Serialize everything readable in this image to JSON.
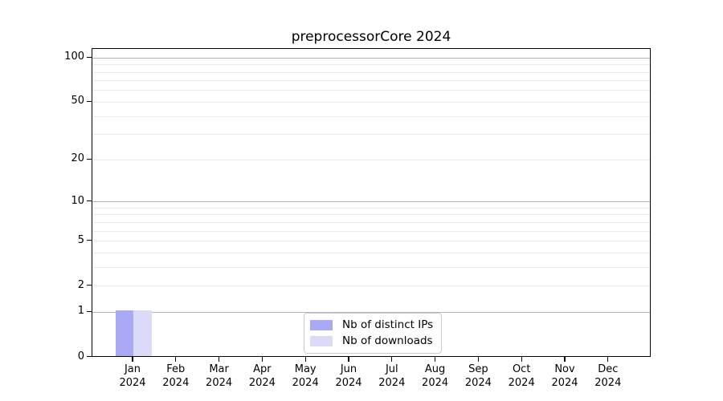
{
  "chart_data": {
    "type": "bar",
    "title": "preprocessorCore 2024",
    "categories": [
      "Jan\n2024",
      "Feb\n2024",
      "Mar\n2024",
      "Apr\n2024",
      "May\n2024",
      "Jun\n2024",
      "Jul\n2024",
      "Aug\n2024",
      "Sep\n2024",
      "Oct\n2024",
      "Nov\n2024",
      "Dec\n2024"
    ],
    "series": [
      {
        "name": "Nb of distinct IPs",
        "color": "#a9a9f4",
        "values": [
          1,
          0,
          0,
          0,
          0,
          0,
          0,
          0,
          0,
          0,
          0,
          0
        ]
      },
      {
        "name": "Nb of downloads",
        "color": "#dbdbf9",
        "values": [
          1,
          0,
          0,
          0,
          0,
          0,
          0,
          0,
          0,
          0,
          0,
          0
        ]
      }
    ],
    "xlabel": "",
    "ylabel": "",
    "yscale": "log1p",
    "ylim": [
      0,
      115
    ],
    "y_ticks": [
      100,
      50,
      20,
      10,
      5,
      2,
      1,
      0
    ],
    "y_major_gridlines": [
      1,
      10,
      100
    ],
    "y_minor_gridlines": [
      2,
      3,
      4,
      5,
      6,
      7,
      8,
      9,
      20,
      30,
      40,
      50,
      60,
      70,
      80,
      90
    ],
    "grid": true,
    "legend_position": "lower center",
    "colors": {
      "major_grid": "#b3b3b3",
      "minor_grid": "#ebebeb",
      "axis": "#000000",
      "background": "#ffffff",
      "text": "#000000"
    }
  }
}
